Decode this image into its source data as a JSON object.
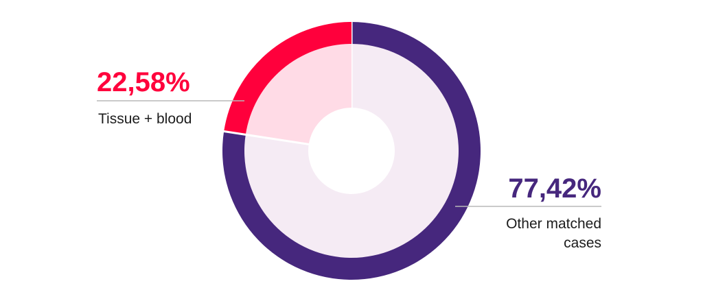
{
  "chart_data": {
    "type": "pie",
    "title": "",
    "slices": [
      {
        "label_lines": [
          "Other matched",
          "cases"
        ],
        "value_label": "77,42%",
        "value": 77.42,
        "color": "#46277d",
        "fill": "#f5ebf4"
      },
      {
        "label_lines": [
          "Tissue + blood"
        ],
        "value_label": "22,58%",
        "value": 22.58,
        "color": "#ff003c",
        "fill": "#ffdbe6"
      }
    ],
    "legend": "none",
    "grid": false
  }
}
